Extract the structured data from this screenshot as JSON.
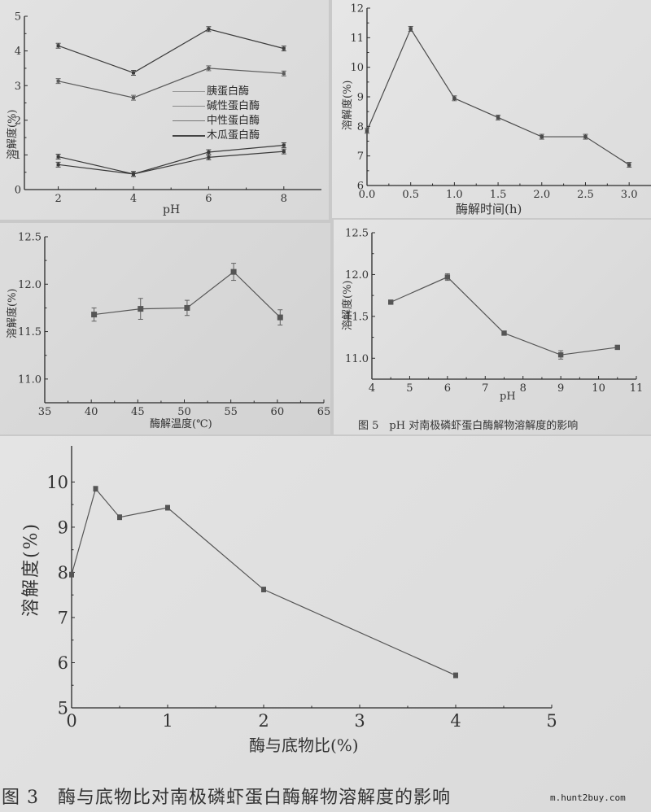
{
  "chart_data": [
    {
      "id": "ph_enzyme_comparison",
      "type": "line",
      "title": "",
      "xlabel": "pH",
      "ylabel": "溶解度(%)",
      "xlim": [
        1.1,
        9
      ],
      "ylim": [
        0,
        5
      ],
      "xticks": [
        2,
        4,
        6,
        8
      ],
      "yticks": [
        0,
        1,
        2,
        3,
        4,
        5
      ],
      "grid": false,
      "legend_position": "center-right",
      "x": [
        2,
        4,
        6,
        8
      ],
      "series": [
        {
          "name": "胰蛋白酶",
          "values": [
            4.15,
            3.37,
            4.63,
            4.07
          ]
        },
        {
          "name": "碱性蛋白酶",
          "values": [
            3.13,
            2.65,
            3.5,
            3.35
          ]
        },
        {
          "name": "中性蛋白酶",
          "values": [
            0.95,
            0.45,
            1.08,
            1.28
          ]
        },
        {
          "name": "木瓜蛋白酶",
          "values": [
            0.72,
            0.45,
            0.93,
            1.1
          ]
        }
      ]
    },
    {
      "id": "hydrolysis_time",
      "type": "line",
      "title": "",
      "xlabel": "酶解时间(h)",
      "ylabel": "溶解度(%)",
      "xlim": [
        0,
        3.25
      ],
      "ylim": [
        6,
        12
      ],
      "xticks": [
        0.0,
        0.5,
        1.0,
        1.5,
        2.0,
        2.5,
        3.0
      ],
      "xtick_labels": [
        "0.0",
        "0.5",
        "1.0",
        "1.5",
        "2.0",
        "2.5",
        "3.0"
      ],
      "yticks": [
        6,
        7,
        8,
        9,
        10,
        11,
        12
      ],
      "grid": false,
      "x": [
        0.0,
        0.5,
        1.0,
        1.5,
        2.0,
        2.5,
        3.0
      ],
      "values": [
        7.85,
        11.3,
        8.95,
        8.3,
        7.65,
        7.65,
        6.7
      ]
    },
    {
      "id": "hydrolysis_temperature",
      "type": "line",
      "title": "",
      "xlabel": "酶解温度(℃)",
      "ylabel": "溶解度(%)",
      "xlim": [
        35,
        65
      ],
      "ylim": [
        10.75,
        12.5
      ],
      "xticks": [
        35,
        40,
        45,
        50,
        55,
        60,
        65
      ],
      "yticks": [
        11.0,
        11.5,
        12.0,
        12.5
      ],
      "ytick_labels": [
        "11.0",
        "11.5",
        "12.0",
        "12.5"
      ],
      "grid": false,
      "x": [
        40,
        45,
        50,
        55,
        60
      ],
      "values": [
        11.68,
        11.74,
        11.75,
        12.13,
        11.65
      ],
      "errors": [
        0.07,
        0.11,
        0.08,
        0.09,
        0.08
      ]
    },
    {
      "id": "ph_effect",
      "type": "line",
      "title": "图 5　pH 对南极磷虾蛋白酶解物溶解度的影响",
      "xlabel": "pH",
      "ylabel": "溶解度(%)",
      "xlim": [
        4,
        11
      ],
      "ylim": [
        10.75,
        12.5
      ],
      "xticks": [
        4,
        5,
        6,
        7,
        8,
        9,
        10,
        11
      ],
      "yticks": [
        11.0,
        11.5,
        12.0,
        12.5
      ],
      "ytick_labels": [
        "11.0",
        "11.5",
        "12.0",
        "12.5"
      ],
      "grid": false,
      "x": [
        4.5,
        6,
        7.5,
        9,
        10.5
      ],
      "values": [
        11.67,
        11.97,
        11.3,
        11.04,
        11.13
      ],
      "errors": [
        0.02,
        0.04,
        0.02,
        0.05,
        0.02
      ]
    },
    {
      "id": "enzyme_substrate_ratio",
      "type": "line",
      "title": "图 3　酶与底物比对南极磷虾蛋白酶解物溶解度的影响",
      "xlabel": "酶与底物比(%)",
      "ylabel": "溶解度(%)",
      "xlim": [
        0,
        5
      ],
      "ylim": [
        5,
        10.8
      ],
      "xticks": [
        0,
        1,
        2,
        3,
        4,
        5
      ],
      "yticks": [
        5,
        6,
        7,
        8,
        9,
        10
      ],
      "grid": false,
      "x": [
        0,
        0.25,
        0.5,
        1,
        2,
        4
      ],
      "values": [
        7.95,
        9.85,
        9.22,
        9.43,
        7.62,
        5.72
      ]
    }
  ],
  "panels": {
    "p1": {
      "ylabel": "溶解度(%)",
      "xlabel": "pH",
      "legend": [
        "胰蛋白酶",
        "碱性蛋白酶",
        "中性蛋白酶",
        "木瓜蛋白酶"
      ]
    },
    "p2": {
      "ylabel": "溶解度(%)",
      "xlabel": "酶解时间(h)"
    },
    "p3": {
      "ylabel": "溶解度(%)",
      "xlabel": "酶解温度(℃)"
    },
    "p4": {
      "ylabel": "溶解度(%)",
      "xlabel": "pH",
      "caption": "图 5　pH 对南极磷虾蛋白酶解物溶解度的影响"
    },
    "p5": {
      "ylabel": "溶解度(%)",
      "xlabel": "酶与底物比(%)",
      "caption": "图 3　酶与底物比对南极磷虾蛋白酶解物溶解度的影响"
    }
  },
  "watermark": "m.hunt2buy.com",
  "colors": {
    "line_dark": "#3a3a3a",
    "line_light": "#8a8a8a",
    "axis": "#2a2a2a",
    "paper": "#dedede"
  }
}
